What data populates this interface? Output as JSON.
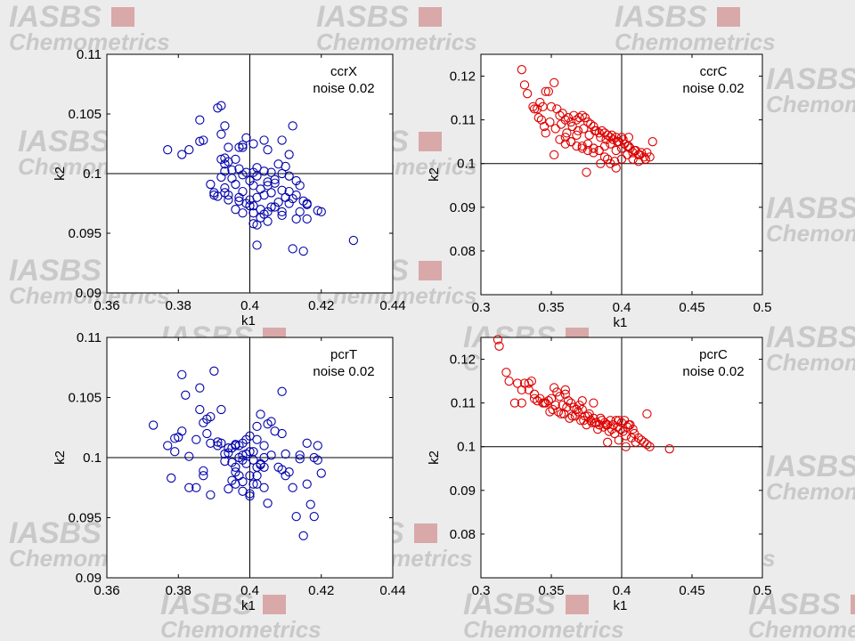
{
  "watermark": {
    "line1": "IASBS",
    "line2": "Chemometrics",
    "text_color": "#c9c9c9",
    "accent_color": "#d9a8a8"
  },
  "chart_data": [
    {
      "type": "scatter",
      "title": "",
      "xlabel": "k1",
      "ylabel": "k2",
      "xlim": [
        0.36,
        0.44
      ],
      "ylim": [
        0.09,
        0.11
      ],
      "xticks": [
        "0.36",
        "0.38",
        "0.4",
        "0.42",
        "0.44"
      ],
      "yticks": [
        "0.09",
        "0.095",
        "0.1",
        "0.105",
        "0.11"
      ],
      "annotation": [
        "ccrX",
        "noise 0.02"
      ],
      "crosshair": {
        "x": 0.4,
        "y": 0.1
      },
      "grid": false,
      "marker": "circle",
      "color": "#0000aa",
      "series": [
        {
          "x": [
            0.377,
            0.381,
            0.383,
            0.386,
            0.386,
            0.387,
            0.391,
            0.392,
            0.393,
            0.392,
            0.393,
            0.392,
            0.394,
            0.396,
            0.397,
            0.398,
            0.398,
            0.399,
            0.401,
            0.404,
            0.405,
            0.409,
            0.411,
            0.412,
            0.393,
            0.394,
            0.393,
            0.395,
            0.397,
            0.399,
            0.401,
            0.402,
            0.404,
            0.406,
            0.408,
            0.41,
            0.392,
            0.395,
            0.398,
            0.4,
            0.402,
            0.405,
            0.407,
            0.409,
            0.411,
            0.413,
            0.389,
            0.39,
            0.393,
            0.396,
            0.398,
            0.401,
            0.403,
            0.405,
            0.407,
            0.409,
            0.411,
            0.414,
            0.391,
            0.394,
            0.397,
            0.4,
            0.402,
            0.404,
            0.406,
            0.408,
            0.41,
            0.412,
            0.415,
            0.39,
            0.393,
            0.396,
            0.399,
            0.401,
            0.403,
            0.405,
            0.407,
            0.409,
            0.411,
            0.414,
            0.416,
            0.394,
            0.397,
            0.401,
            0.404,
            0.406,
            0.409,
            0.413,
            0.416,
            0.42,
            0.402,
            0.405,
            0.4,
            0.403,
            0.398,
            0.401,
            0.412,
            0.415,
            0.402,
            0.429,
            0.419,
            0.416,
            0.413
          ],
          "y": [
            0.102,
            0.1016,
            0.102,
            0.1045,
            0.1027,
            0.1028,
            0.1055,
            0.1057,
            0.104,
            0.1033,
            0.1013,
            0.1012,
            0.1022,
            0.1012,
            0.1022,
            0.1022,
            0.1024,
            0.103,
            0.1025,
            0.1028,
            0.102,
            0.1028,
            0.1016,
            0.104,
            0.1008,
            0.101,
            0.1002,
            0.1003,
            0.1004,
            0.1001,
            0.1001,
            0.1005,
            0.1002,
            0.1001,
            0.1008,
            0.1006,
            0.0997,
            0.0996,
            0.0999,
            0.0994,
            0.0998,
            0.0993,
            0.0995,
            0.1,
            0.0998,
            0.0994,
            0.0991,
            0.0984,
            0.0988,
            0.0991,
            0.0985,
            0.099,
            0.0987,
            0.099,
            0.0992,
            0.0986,
            0.0985,
            0.099,
            0.0981,
            0.0978,
            0.098,
            0.0978,
            0.098,
            0.0982,
            0.0984,
            0.0976,
            0.098,
            0.0979,
            0.0977,
            0.0982,
            0.0984,
            0.097,
            0.0975,
            0.0973,
            0.097,
            0.0968,
            0.0972,
            0.0965,
            0.0975,
            0.0968,
            0.0962,
            0.0982,
            0.0977,
            0.0967,
            0.0966,
            0.0972,
            0.0968,
            0.0962,
            0.0974,
            0.0968,
            0.0957,
            0.096,
            0.0973,
            0.0963,
            0.0967,
            0.0958,
            0.0937,
            0.0935,
            0.094,
            0.0944,
            0.0969,
            0.0975,
            0.0982
          ]
        }
      ]
    },
    {
      "type": "scatter",
      "title": "",
      "xlabel": "k1",
      "ylabel": "k2",
      "xlim": [
        0.3,
        0.5
      ],
      "ylim": [
        0.07,
        0.125
      ],
      "xticks": [
        "0.3",
        "0.35",
        "0.4",
        "0.45",
        "0.5"
      ],
      "yticks": [
        "0.08",
        "0.09",
        "0.1",
        "0.11",
        "0.12"
      ],
      "annotation": [
        "ccrC",
        "noise 0.02"
      ],
      "crosshair": {
        "x": 0.4,
        "y": 0.1
      },
      "grid": false,
      "marker": "circle",
      "color": "#dd0000",
      "series": [
        {
          "x": [
            0.329,
            0.331,
            0.333,
            0.337,
            0.34,
            0.342,
            0.344,
            0.346,
            0.348,
            0.35,
            0.352,
            0.354,
            0.356,
            0.358,
            0.36,
            0.362,
            0.364,
            0.366,
            0.368,
            0.37,
            0.372,
            0.374,
            0.376,
            0.378,
            0.38,
            0.382,
            0.384,
            0.386,
            0.388,
            0.39,
            0.392,
            0.394,
            0.396,
            0.398,
            0.4,
            0.402,
            0.404,
            0.406,
            0.408,
            0.41,
            0.412,
            0.414,
            0.416,
            0.418,
            0.42,
            0.422,
            0.338,
            0.341,
            0.345,
            0.349,
            0.353,
            0.357,
            0.361,
            0.365,
            0.369,
            0.373,
            0.377,
            0.381,
            0.385,
            0.389,
            0.393,
            0.397,
            0.401,
            0.405,
            0.409,
            0.413,
            0.417,
            0.36,
            0.364,
            0.368,
            0.372,
            0.376,
            0.38,
            0.384,
            0.388,
            0.392,
            0.396,
            0.4,
            0.404,
            0.408,
            0.412,
            0.356,
            0.36,
            0.364,
            0.368,
            0.372,
            0.376,
            0.38,
            0.384,
            0.388,
            0.392,
            0.396,
            0.352,
            0.346,
            0.343,
            0.375,
            0.38,
            0.385,
            0.39,
            0.395,
            0.4,
            0.405
          ],
          "y": [
            0.1215,
            0.118,
            0.116,
            0.113,
            0.1125,
            0.114,
            0.113,
            0.1165,
            0.1165,
            0.113,
            0.1185,
            0.1125,
            0.111,
            0.1115,
            0.11,
            0.1105,
            0.1095,
            0.111,
            0.11,
            0.1105,
            0.111,
            0.1105,
            0.1095,
            0.109,
            0.1085,
            0.1075,
            0.107,
            0.1075,
            0.107,
            0.1065,
            0.106,
            0.1055,
            0.106,
            0.105,
            0.106,
            0.1045,
            0.104,
            0.1035,
            0.1025,
            0.103,
            0.102,
            0.1025,
            0.1015,
            0.1025,
            0.1015,
            0.105,
            0.1125,
            0.1105,
            0.1085,
            0.1095,
            0.108,
            0.109,
            0.107,
            0.1085,
            0.1075,
            0.108,
            0.1065,
            0.1075,
            0.106,
            0.1055,
            0.1065,
            0.105,
            0.1055,
            0.104,
            0.103,
            0.102,
            0.101,
            0.106,
            0.105,
            0.1065,
            0.104,
            0.1045,
            0.1035,
            0.103,
            0.104,
            0.1045,
            0.103,
            0.1035,
            0.102,
            0.101,
            0.1005,
            0.1055,
            0.1045,
            0.105,
            0.104,
            0.1035,
            0.103,
            0.1025,
            0.103,
            0.1015,
            0.1,
            0.099,
            0.102,
            0.107,
            0.11,
            0.098,
            0.1035,
            0.1,
            0.101,
            0.1005,
            0.101,
            0.106
          ]
        }
      ]
    },
    {
      "type": "scatter",
      "title": "",
      "xlabel": "k1",
      "ylabel": "k2",
      "xlim": [
        0.36,
        0.44
      ],
      "ylim": [
        0.09,
        0.11
      ],
      "xticks": [
        "0.36",
        "0.38",
        "0.4",
        "0.42",
        "0.44"
      ],
      "yticks": [
        "0.09",
        "0.095",
        "0.1",
        "0.105",
        "0.11"
      ],
      "annotation": [
        "pcrT",
        "noise 0.02"
      ],
      "crosshair": {
        "x": 0.4,
        "y": 0.1
      },
      "grid": false,
      "marker": "circle",
      "color": "#0000aa",
      "series": [
        {
          "x": [
            0.373,
            0.377,
            0.378,
            0.379,
            0.38,
            0.381,
            0.382,
            0.383,
            0.385,
            0.386,
            0.387,
            0.387,
            0.388,
            0.389,
            0.389,
            0.39,
            0.391,
            0.392,
            0.393,
            0.394,
            0.395,
            0.395,
            0.396,
            0.396,
            0.397,
            0.397,
            0.398,
            0.398,
            0.399,
            0.399,
            0.4,
            0.4,
            0.401,
            0.401,
            0.402,
            0.402,
            0.403,
            0.403,
            0.404,
            0.404,
            0.405,
            0.405,
            0.406,
            0.406,
            0.407,
            0.408,
            0.409,
            0.409,
            0.41,
            0.41,
            0.411,
            0.412,
            0.413,
            0.414,
            0.415,
            0.416,
            0.417,
            0.418,
            0.419,
            0.42,
            0.392,
            0.394,
            0.396,
            0.398,
            0.4,
            0.402,
            0.404,
            0.397,
            0.399,
            0.401,
            0.403,
            0.395,
            0.393,
            0.391,
            0.389,
            0.387,
            0.385,
            0.383,
            0.381,
            0.379,
            0.396,
            0.398,
            0.4,
            0.402,
            0.394,
            0.396,
            0.398,
            0.4,
            0.402,
            0.404,
            0.409,
            0.414,
            0.416,
            0.418,
            0.419,
            0.386,
            0.388
          ],
          "y": [
            0.1027,
            0.101,
            0.0983,
            0.1016,
            0.1017,
            0.1069,
            0.1052,
            0.1001,
            0.0975,
            0.1058,
            0.1029,
            0.0989,
            0.1032,
            0.1034,
            0.0969,
            0.1072,
            0.1013,
            0.1012,
            0.0997,
            0.1004,
            0.1008,
            0.0981,
            0.101,
            0.0992,
            0.101,
            0.0985,
            0.1002,
            0.0998,
            0.1015,
            0.0995,
            0.1018,
            0.097,
            0.1005,
            0.0978,
            0.1026,
            0.0985,
            0.1036,
            0.0995,
            0.0992,
            0.0975,
            0.1028,
            0.0962,
            0.103,
            0.1002,
            0.1022,
            0.0992,
            0.1055,
            0.102,
            0.0985,
            0.1003,
            0.0988,
            0.0975,
            0.0951,
            0.1002,
            0.0935,
            0.1012,
            0.0961,
            0.0951,
            0.101,
            0.0987,
            0.104,
            0.1008,
            0.1011,
            0.1012,
            0.1005,
            0.1015,
            0.101,
            0.1,
            0.1003,
            0.0998,
            0.0994,
            0.0996,
            0.1003,
            0.101,
            0.1012,
            0.0985,
            0.1015,
            0.0975,
            0.1022,
            0.1005,
            0.0988,
            0.098,
            0.0985,
            0.0978,
            0.0974,
            0.0978,
            0.0972,
            0.0968,
            0.0992,
            0.1,
            0.099,
            0.0999,
            0.0978,
            0.1,
            0.0998,
            0.104,
            0.102
          ]
        }
      ]
    },
    {
      "type": "scatter",
      "title": "",
      "xlabel": "k1",
      "ylabel": "k2",
      "xlim": [
        0.3,
        0.5
      ],
      "ylim": [
        0.07,
        0.125
      ],
      "xticks": [
        "0.3",
        "0.35",
        "0.4",
        "0.45",
        "0.5"
      ],
      "yticks": [
        "0.08",
        "0.09",
        "0.1",
        "0.11",
        "0.12"
      ],
      "annotation": [
        "pcrC",
        "noise 0.02"
      ],
      "crosshair": {
        "x": 0.4,
        "y": 0.1
      },
      "grid": false,
      "marker": "circle",
      "color": "#dd0000",
      "series": [
        {
          "x": [
            0.312,
            0.313,
            0.318,
            0.32,
            0.324,
            0.326,
            0.329,
            0.331,
            0.334,
            0.336,
            0.338,
            0.34,
            0.342,
            0.344,
            0.346,
            0.348,
            0.35,
            0.352,
            0.354,
            0.356,
            0.358,
            0.36,
            0.362,
            0.364,
            0.366,
            0.368,
            0.37,
            0.372,
            0.374,
            0.376,
            0.378,
            0.38,
            0.382,
            0.384,
            0.386,
            0.388,
            0.39,
            0.392,
            0.394,
            0.396,
            0.398,
            0.4,
            0.402,
            0.404,
            0.406,
            0.408,
            0.41,
            0.412,
            0.414,
            0.416,
            0.418,
            0.42,
            0.434,
            0.345,
            0.349,
            0.353,
            0.357,
            0.361,
            0.365,
            0.369,
            0.373,
            0.377,
            0.381,
            0.385,
            0.389,
            0.393,
            0.397,
            0.401,
            0.405,
            0.409,
            0.351,
            0.355,
            0.359,
            0.363,
            0.367,
            0.371,
            0.375,
            0.379,
            0.383,
            0.387,
            0.391,
            0.395,
            0.399,
            0.403,
            0.407,
            0.329,
            0.334,
            0.338,
            0.36,
            0.372,
            0.38,
            0.39,
            0.398,
            0.403,
            0.418
          ],
          "y": [
            0.1245,
            0.123,
            0.117,
            0.115,
            0.11,
            0.1145,
            0.113,
            0.1145,
            0.113,
            0.115,
            0.111,
            0.1105,
            0.111,
            0.11,
            0.11,
            0.1105,
            0.111,
            0.1135,
            0.1125,
            0.1115,
            0.1095,
            0.113,
            0.1105,
            0.11,
            0.109,
            0.1085,
            0.1095,
            0.1085,
            0.107,
            0.107,
            0.106,
            0.1065,
            0.1055,
            0.105,
            0.106,
            0.1055,
            0.105,
            0.106,
            0.105,
            0.106,
            0.106,
            0.1055,
            0.106,
            0.1045,
            0.105,
            0.104,
            0.101,
            0.102,
            0.1015,
            0.101,
            0.1005,
            0.1,
            0.0995,
            0.11,
            0.108,
            0.1095,
            0.1075,
            0.109,
            0.107,
            0.108,
            0.106,
            0.1075,
            0.1055,
            0.1065,
            0.105,
            0.104,
            0.1045,
            0.1035,
            0.105,
            0.103,
            0.1085,
            0.108,
            0.1075,
            0.1065,
            0.107,
            0.106,
            0.105,
            0.1055,
            0.104,
            0.1045,
            0.1035,
            0.103,
            0.104,
            0.1025,
            0.102,
            0.11,
            0.1145,
            0.112,
            0.112,
            0.1105,
            0.11,
            0.101,
            0.1015,
            0.1,
            0.1075
          ]
        }
      ]
    }
  ]
}
